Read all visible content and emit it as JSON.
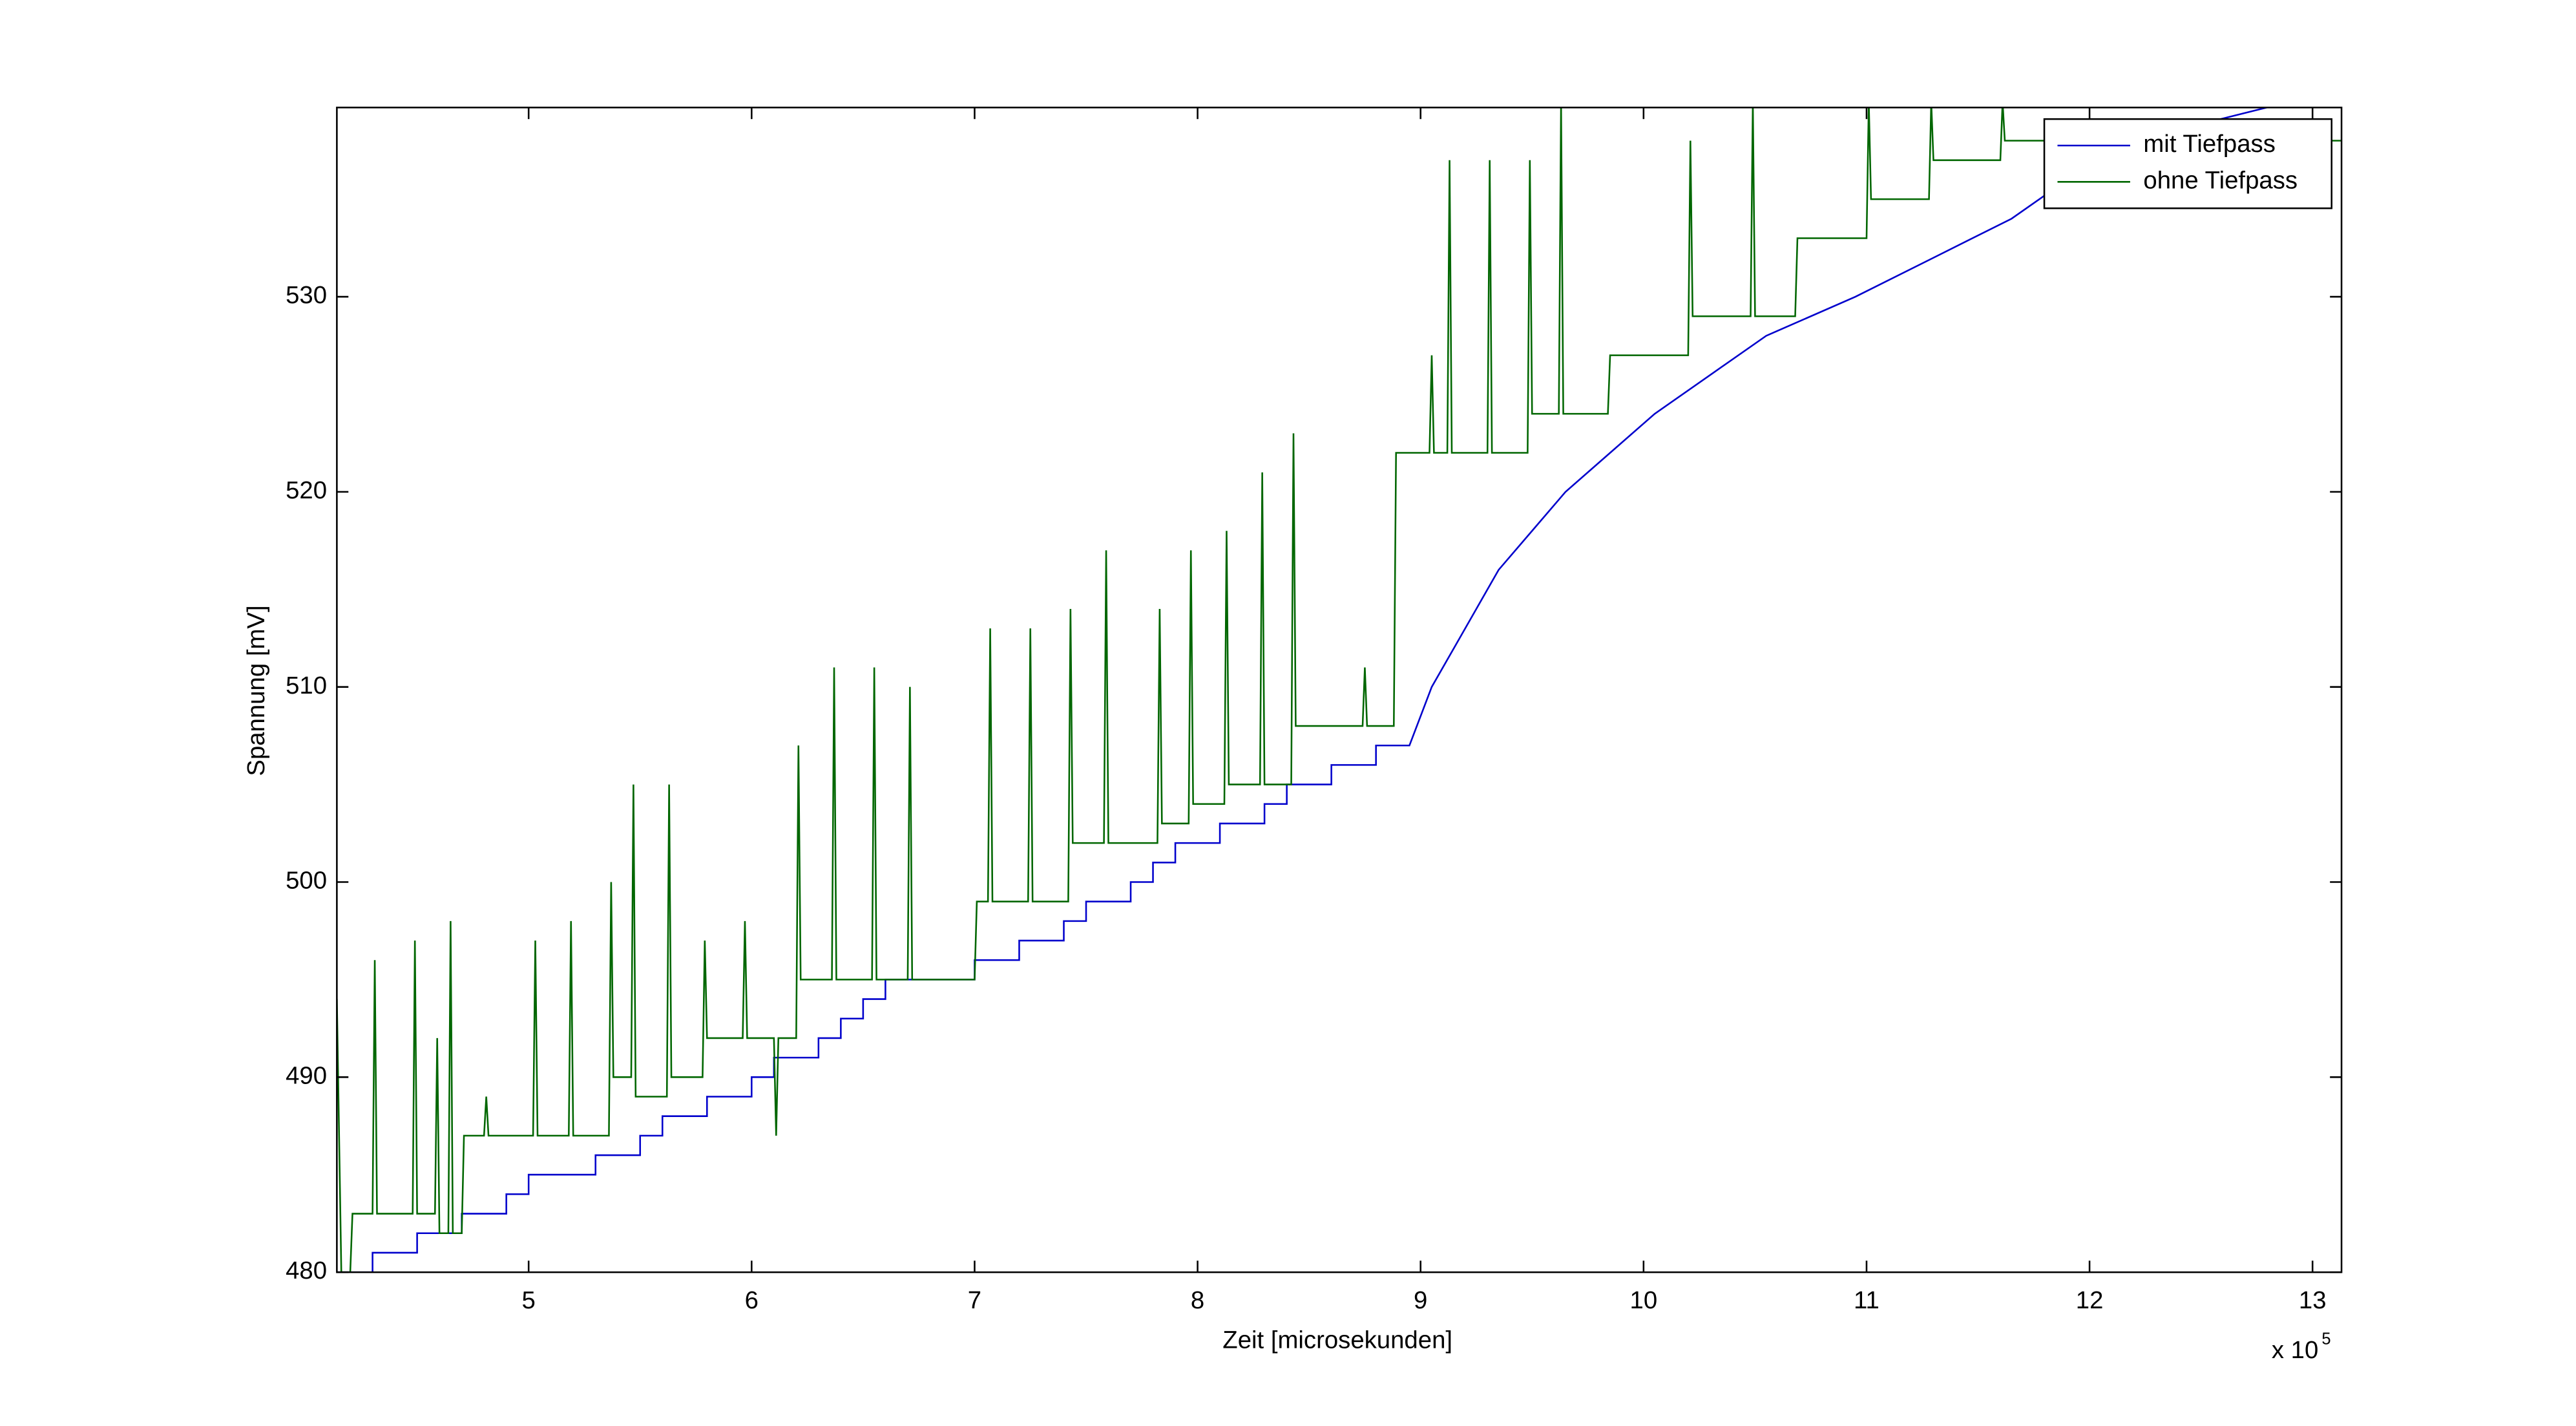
{
  "chart_data": {
    "type": "line",
    "xlabel": "Zeit [microsekunden]",
    "ylabel": "Spannung [mV]",
    "x_multiplier": "x 10",
    "x_exponent": "5",
    "xlim": [
      414000,
      1313000
    ],
    "ylim": [
      480,
      539.7
    ],
    "xticks": [
      {
        "value": 500000,
        "label": "5"
      },
      {
        "value": 600000,
        "label": "6"
      },
      {
        "value": 700000,
        "label": "7"
      },
      {
        "value": 800000,
        "label": "8"
      },
      {
        "value": 900000,
        "label": "9"
      },
      {
        "value": 1000000,
        "label": "10"
      },
      {
        "value": 1100000,
        "label": "11"
      },
      {
        "value": 1200000,
        "label": "12"
      },
      {
        "value": 1300000,
        "label": "13"
      }
    ],
    "yticks": [
      480,
      490,
      500,
      510,
      520,
      530
    ],
    "legend": "upper right",
    "series": [
      {
        "name": "mit Tiefpass",
        "color": "#0000cc",
        "x": [
          414000,
          430000,
          430000,
          450000,
          450000,
          470000,
          470000,
          490000,
          490000,
          500000,
          500000,
          530000,
          530000,
          550000,
          550000,
          560000,
          560000,
          580000,
          580000,
          600000,
          600000,
          610000,
          610000,
          630000,
          630000,
          640000,
          640000,
          650000,
          650000,
          660000,
          660000,
          700000,
          700000,
          720000,
          720000,
          740000,
          740000,
          750000,
          750000,
          770000,
          770000,
          780000,
          780000,
          790000,
          790000,
          810000,
          810000,
          830000,
          830000,
          840000,
          840000,
          860000,
          860000,
          880000,
          880000,
          895000,
          905000,
          915000,
          925000,
          935000,
          950000,
          965000,
          985000,
          1005000,
          1030000,
          1055000,
          1095000,
          1130000,
          1165000,
          1190000,
          1220000,
          1290000,
          1313000
        ],
        "values": [
          480,
          480,
          481,
          481,
          482,
          482,
          483,
          483,
          484,
          484,
          485,
          485,
          486,
          486,
          487,
          487,
          488,
          488,
          489,
          489,
          490,
          490,
          491,
          491,
          492,
          492,
          493,
          493,
          494,
          494,
          495,
          495,
          496,
          496,
          497,
          497,
          498,
          498,
          499,
          499,
          500,
          500,
          501,
          501,
          502,
          502,
          503,
          503,
          504,
          504,
          505,
          505,
          506,
          506,
          507,
          507,
          510,
          512,
          514,
          516,
          518,
          520,
          522,
          524,
          526,
          528,
          530,
          532,
          534,
          536,
          538,
          540,
          540
        ]
      },
      {
        "name": "ohne Tiefpass",
        "color": "#006600",
        "x": [
          414000,
          416000,
          420000,
          421000,
          430000,
          431000,
          432000,
          448000,
          449000,
          450000,
          458000,
          459000,
          460000,
          464000,
          465000,
          466000,
          470000,
          471000,
          480000,
          481000,
          482000,
          502000,
          503000,
          504000,
          518000,
          519000,
          520000,
          536000,
          537000,
          538000,
          546000,
          547000,
          548000,
          562000,
          563000,
          564000,
          578000,
          579000,
          580000,
          596000,
          597000,
          598000,
          610000,
          611000,
          612000,
          620000,
          621000,
          622000,
          636000,
          637000,
          638000,
          654000,
          655000,
          656000,
          670000,
          671000,
          672000,
          700000,
          701000,
          706000,
          707000,
          708000,
          724000,
          725000,
          726000,
          742000,
          743000,
          744000,
          758000,
          759000,
          760000,
          782000,
          783000,
          784000,
          796000,
          797000,
          798000,
          812000,
          813000,
          814000,
          828000,
          829000,
          830000,
          842000,
          843000,
          844000,
          874000,
          875000,
          876000,
          888000,
          889000,
          904000,
          905000,
          906000,
          912000,
          913000,
          914000,
          930000,
          931000,
          932000,
          948000,
          949000,
          950000,
          962000,
          963000,
          964000,
          984000,
          985000,
          1020000,
          1021000,
          1022000,
          1048000,
          1049000,
          1050000,
          1068000,
          1069000,
          1100000,
          1101000,
          1102000,
          1128000,
          1129000,
          1130000,
          1160000,
          1161000,
          1162000,
          1313000
        ],
        "values": [
          494,
          480,
          480,
          483,
          483,
          496,
          483,
          483,
          497,
          483,
          483,
          492,
          482,
          482,
          498,
          482,
          482,
          487,
          487,
          489,
          487,
          487,
          497,
          487,
          487,
          498,
          487,
          487,
          500,
          490,
          490,
          505,
          489,
          489,
          505,
          490,
          490,
          497,
          492,
          492,
          498,
          492,
          492,
          487,
          492,
          492,
          507,
          495,
          495,
          511,
          495,
          495,
          511,
          495,
          495,
          510,
          495,
          495,
          499,
          499,
          513,
          499,
          499,
          513,
          499,
          499,
          514,
          502,
          502,
          517,
          502,
          502,
          514,
          503,
          503,
          517,
          504,
          504,
          518,
          505,
          505,
          521,
          505,
          505,
          523,
          508,
          508,
          511,
          508,
          508,
          522,
          522,
          527,
          522,
          522,
          537,
          522,
          522,
          537,
          522,
          522,
          537,
          524,
          524,
          540,
          524,
          524,
          527,
          527,
          538,
          529,
          529,
          540,
          529,
          529,
          533,
          533,
          540,
          535,
          535,
          540,
          537,
          537,
          540,
          538,
          538
        ]
      }
    ]
  }
}
